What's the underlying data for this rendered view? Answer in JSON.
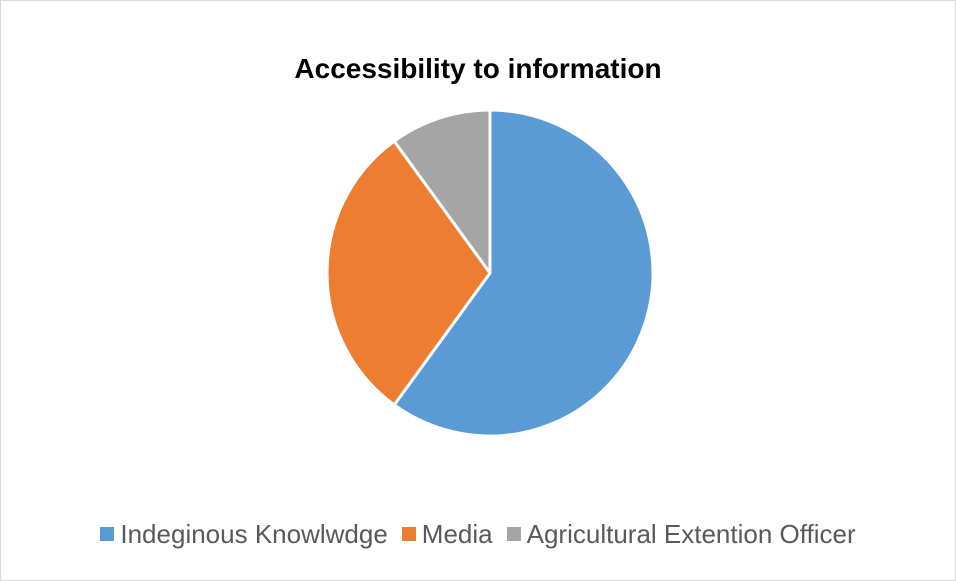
{
  "chart_data": {
    "type": "pie",
    "title": "Accessibility to information",
    "categories": [
      "Indeginous Knowlwdge",
      "Media",
      "Agricultural Extention Officer"
    ],
    "values": [
      60,
      30,
      10
    ],
    "colors": [
      "#5b9bd5",
      "#ed7d31",
      "#a5a5a5"
    ],
    "legend_position": "bottom",
    "grid": false
  }
}
